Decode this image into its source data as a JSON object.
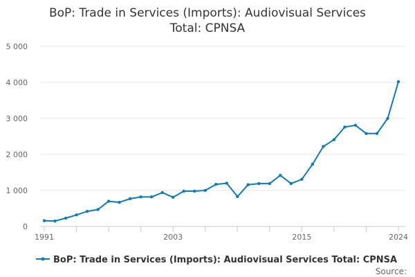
{
  "chart_data": {
    "type": "line",
    "title_lines": [
      "BoP: Trade in Services (Imports): Audiovisual Services",
      "Total: CPNSA"
    ],
    "xlabel": "",
    "ylabel": "",
    "x_tick_labels": [
      "1991",
      "2003",
      "2015",
      "2024"
    ],
    "y_tick_labels": [
      "0",
      "1 000",
      "2 000",
      "3 000",
      "4 000",
      "5 000"
    ],
    "xlim": [
      1991,
      2024
    ],
    "ylim": [
      0,
      5000
    ],
    "grid": true,
    "legend_position": "bottom",
    "series": [
      {
        "name": "BoP: Trade in Services (Imports): Audiovisual Services Total: CPNSA",
        "color": "#0f7ab5",
        "x": [
          1991,
          1992,
          1993,
          1994,
          1995,
          1996,
          1997,
          1998,
          1999,
          2000,
          2001,
          2002,
          2003,
          2004,
          2005,
          2006,
          2007,
          2008,
          2009,
          2010,
          2011,
          2012,
          2013,
          2014,
          2015,
          2016,
          2017,
          2018,
          2019,
          2020,
          2021,
          2022,
          2023,
          2024
        ],
        "values": [
          160,
          150,
          230,
          320,
          420,
          470,
          700,
          670,
          770,
          820,
          820,
          940,
          810,
          980,
          980,
          1000,
          1170,
          1200,
          830,
          1160,
          1190,
          1190,
          1420,
          1190,
          1310,
          1730,
          2220,
          2410,
          2760,
          2810,
          2580,
          2580,
          3000,
          4020
        ]
      }
    ],
    "source_label": "Source:"
  }
}
